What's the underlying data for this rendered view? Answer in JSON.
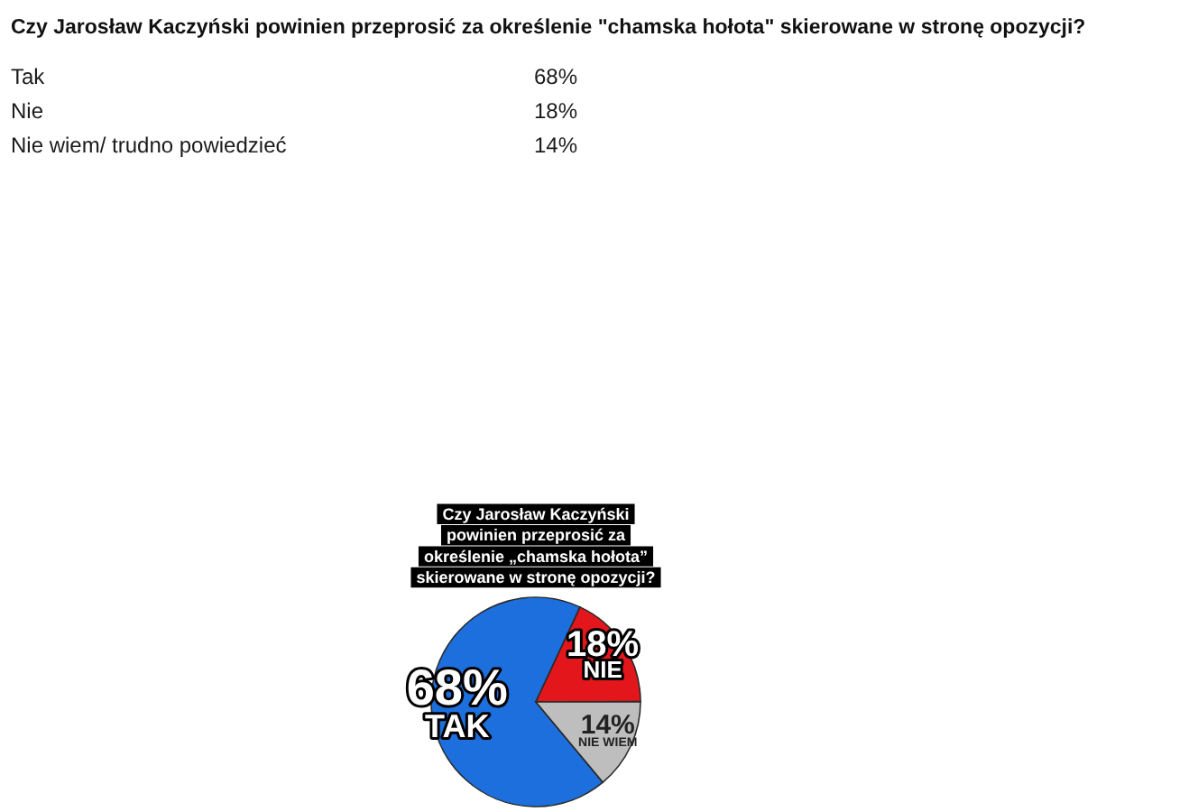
{
  "chart_data": [
    {
      "type": "other",
      "title": "Czy Jarosław Kaczyński powinien przeprosić za określenie \"chamska hołota\" skierowane w stronę opozycji?",
      "categories": [
        "Tak",
        "Nie",
        "Nie wiem/ trudno powiedzieć"
      ],
      "value_labels": [
        "68%",
        "18%",
        "14%"
      ]
    },
    {
      "type": "pie",
      "title": "Czy Jarosław Kaczyński powinien przeprosić za określenie „chamska hołota” skierowane w stronę opozycji?",
      "categories": [
        "TAK",
        "NIE",
        "NIE WIEM"
      ],
      "values": [
        68,
        18,
        14
      ],
      "colors": [
        "#1c6fdc",
        "#e3161c",
        "#bebebe"
      ],
      "value_labels": [
        "68%",
        "18%",
        "14%"
      ]
    }
  ]
}
